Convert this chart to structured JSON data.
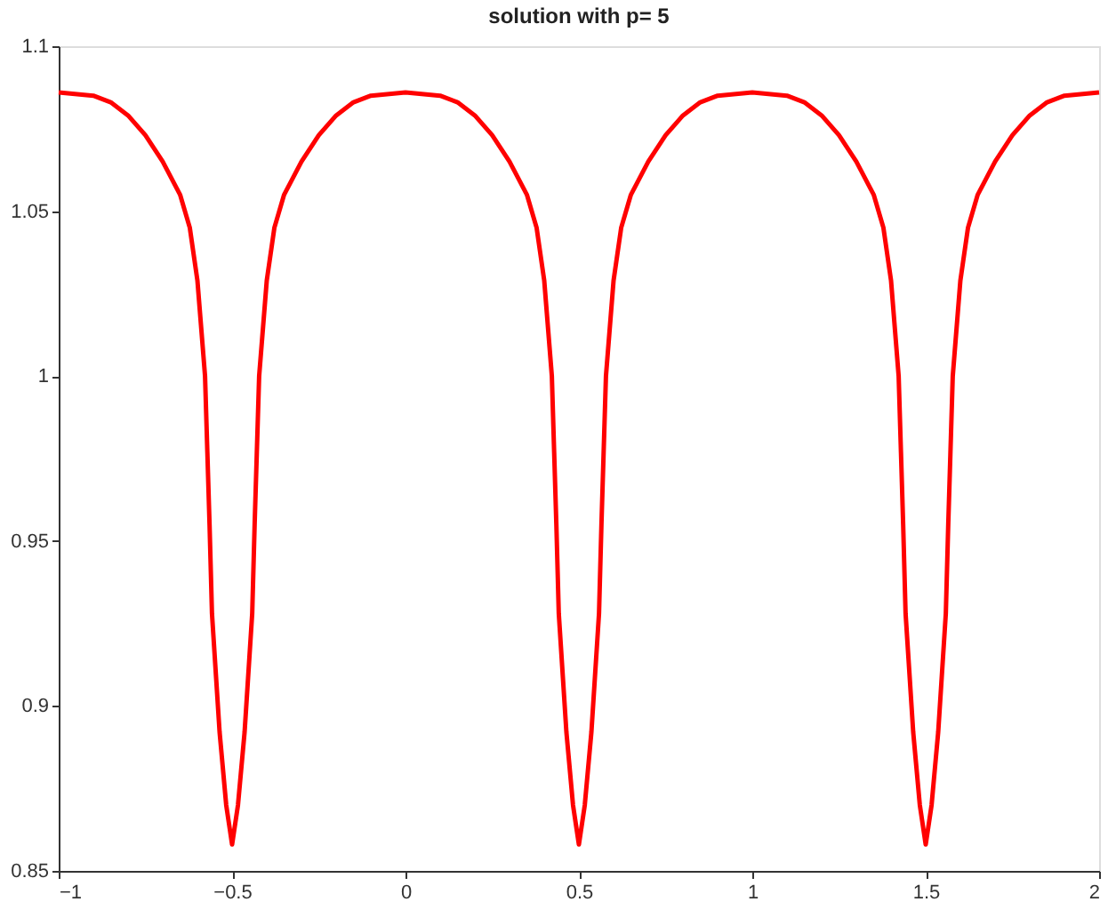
{
  "chart_data": {
    "type": "line",
    "title": "solution with p= 5",
    "x": [
      -1,
      -0.9,
      -0.85,
      -0.8,
      -0.75,
      -0.7,
      -0.65,
      -0.622,
      -0.6,
      -0.578,
      -0.565,
      -0.558,
      -0.536,
      -0.517,
      -0.5,
      -0.483,
      -0.464,
      -0.442,
      -0.435,
      -0.422,
      -0.4,
      -0.378,
      -0.35,
      -0.3,
      -0.25,
      -0.2,
      -0.15,
      -0.1,
      0,
      0.1,
      0.15,
      0.2,
      0.25,
      0.3,
      0.35,
      0.378,
      0.4,
      0.422,
      0.435,
      0.442,
      0.464,
      0.483,
      0.5,
      0.517,
      0.536,
      0.558,
      0.565,
      0.578,
      0.6,
      0.622,
      0.65,
      0.7,
      0.75,
      0.8,
      0.85,
      0.9,
      1,
      1.1,
      1.15,
      1.2,
      1.25,
      1.3,
      1.35,
      1.378,
      1.4,
      1.422,
      1.435,
      1.442,
      1.464,
      1.483,
      1.5,
      1.517,
      1.536,
      1.558,
      1.565,
      1.578,
      1.6,
      1.622,
      1.65,
      1.7,
      1.75,
      1.8,
      1.85,
      1.9,
      2
    ],
    "series": [
      {
        "color": "#ff0000",
        "values": [
          1.086,
          1.085,
          1.083,
          1.079,
          1.073,
          1.065,
          1.055,
          1.045,
          1.029,
          1.0,
          0.955,
          0.928,
          0.892,
          0.87,
          0.858,
          0.87,
          0.892,
          0.928,
          0.955,
          1.0,
          1.029,
          1.045,
          1.055,
          1.065,
          1.073,
          1.079,
          1.083,
          1.085,
          1.086,
          1.085,
          1.083,
          1.079,
          1.073,
          1.065,
          1.055,
          1.045,
          1.029,
          1.0,
          0.955,
          0.928,
          0.892,
          0.87,
          0.858,
          0.87,
          0.892,
          0.928,
          0.955,
          1.0,
          1.029,
          1.045,
          1.055,
          1.065,
          1.073,
          1.079,
          1.083,
          1.085,
          1.086,
          1.085,
          1.083,
          1.079,
          1.073,
          1.065,
          1.055,
          1.045,
          1.029,
          1.0,
          0.955,
          0.928,
          0.892,
          0.87,
          0.858,
          0.87,
          0.892,
          0.928,
          0.955,
          1.0,
          1.029,
          1.045,
          1.055,
          1.065,
          1.073,
          1.079,
          1.083,
          1.085,
          1.086
        ]
      }
    ],
    "xlim": [
      -1,
      2
    ],
    "xticks": [
      -1,
      -0.5,
      0,
      0.5,
      1,
      1.5,
      2
    ],
    "ylim": [
      0.85,
      1.1
    ],
    "yticks": [
      0.85,
      0.9,
      0.95,
      1,
      1.05,
      1.1
    ],
    "grid": false,
    "legend": false,
    "marker": "none",
    "line_style": "solid"
  }
}
